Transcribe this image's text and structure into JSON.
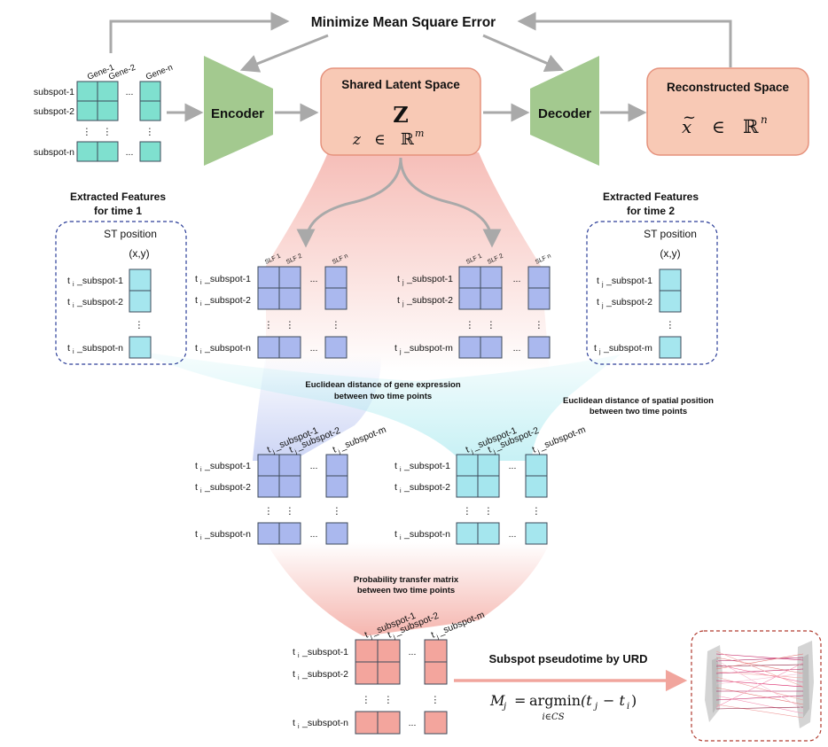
{
  "top": {
    "objective": "Minimize Mean Square Error",
    "encoder": "Encoder",
    "decoder": "Decoder",
    "latent_title": "Shared Latent Space",
    "latent_symbol": "Z",
    "latent_z": "z",
    "latent_in": "∈",
    "latent_R": "ℝ",
    "latent_m": "m",
    "recon_title": "Reconstructed Space",
    "recon_x": "x",
    "recon_tilde": "~",
    "recon_in": "∈",
    "recon_R": "ℝ",
    "recon_n": "n"
  },
  "input_matrix": {
    "cols": [
      "Gene-1",
      "Gene-2",
      "Gene-n"
    ],
    "rows": [
      "subspot-1",
      "subspot-2",
      "subspot-n"
    ]
  },
  "glyphs": {
    "ellipsis": "...",
    "vdots": "⋮",
    "t": "t",
    "i": "i",
    "j": "j"
  },
  "features": {
    "time1_title": [
      "Extracted Features",
      "for time 1"
    ],
    "time2_title": [
      "Extracted Features",
      "for time 2"
    ],
    "st_position": "ST position",
    "xy": "(x,y)",
    "t1_rows": [
      "_subspot-1",
      "_subspot-2",
      "_subspot-n"
    ],
    "t2_rows": [
      "_subspot-1",
      "_subspot-2",
      "_subspot-m"
    ]
  },
  "slf": {
    "cols": [
      "SLF 1",
      "SLF 2",
      "SLF n"
    ],
    "ti_rows": [
      "_subspot-1",
      "_subspot-2",
      "_subspot-n"
    ],
    "tj_rows": [
      "_subspot-1",
      "_subspot-2",
      "_subspot-m"
    ]
  },
  "distance": {
    "gene_label": [
      "Euclidean  distance of gene expression",
      "between two time points"
    ],
    "spatial_label": [
      "Euclidean distance of spatial position",
      "between two time points"
    ],
    "cols": [
      "_subspot-1",
      "_subspot-2",
      "_subspot-m"
    ],
    "rows": [
      "_subspot-1",
      "_subspot-2",
      "_subspot-n"
    ]
  },
  "transfer": {
    "label": [
      "Probability transfer matrix",
      "between two time points"
    ],
    "cols": [
      "_subspot-1",
      "_subspot-2",
      "_subspot-m"
    ],
    "rows": [
      "_subspot-1",
      "_subspot-2",
      "_subspot-n"
    ]
  },
  "pseudotime": {
    "label": "Subspot pseudotime by URD",
    "formula_lhs": "M",
    "formula_lhs_sub": "j",
    "formula_eq": "=",
    "formula_op": "argmin",
    "formula_args": "(t",
    "formula_args_sub1": "j",
    "formula_minus": "− t",
    "formula_args_sub2": "i",
    "formula_close": ")",
    "formula_under": "i∈CS"
  },
  "colors": {
    "teal": "#7fe0cf",
    "blue": "#aab8ee",
    "cyan": "#a5e6ee",
    "salmon": "#f3a59d",
    "green": "#a3c98f",
    "peach": "#f8c9b5",
    "border": "#3d4a5a",
    "dash": "#2d3f99",
    "red_dash": "#b03a2e",
    "arrow": "#a9a9a9"
  }
}
